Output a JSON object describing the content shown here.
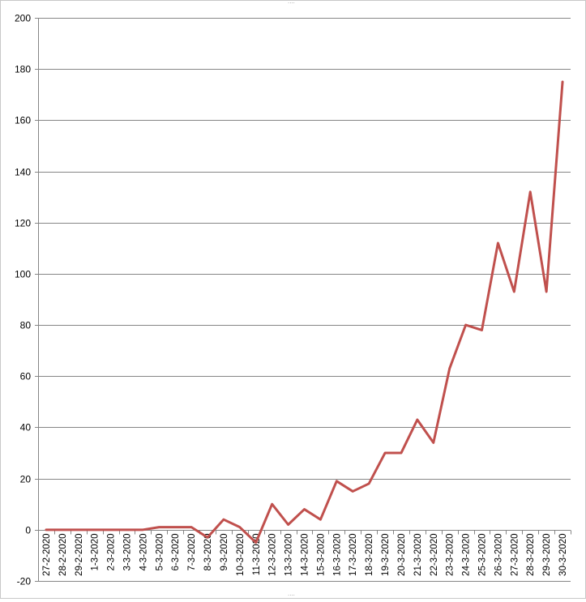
{
  "chart_data": {
    "type": "line",
    "title": "",
    "xlabel": "",
    "ylabel": "",
    "ylim": [
      -20,
      200
    ],
    "yticks": [
      -20,
      0,
      20,
      40,
      60,
      80,
      100,
      120,
      140,
      160,
      180,
      200
    ],
    "grid": true,
    "legend": "none",
    "line_color": "#c0504d",
    "categories": [
      "27-2-2020",
      "28-2-2020",
      "29-2-2020",
      "1-3-2020",
      "2-3-2020",
      "3-3-2020",
      "4-3-2020",
      "5-3-2020",
      "6-3-2020",
      "7-3-2020",
      "8-3-2020",
      "9-3-2020",
      "10-3-2020",
      "11-3-2020",
      "12-3-2020",
      "13-3-2020",
      "14-3-2020",
      "15-3-2020",
      "16-3-2020",
      "17-3-2020",
      "18-3-2020",
      "19-3-2020",
      "20-3-2020",
      "21-3-2020",
      "22-3-2020",
      "23-3-2020",
      "24-3-2020",
      "25-3-2020",
      "26-3-2020",
      "27-3-2020",
      "28-3-2020",
      "29-3-2020",
      "30-3-2020"
    ],
    "series": [
      {
        "values": [
          0,
          0,
          0,
          0,
          0,
          0,
          0,
          1,
          1,
          1,
          -3,
          4,
          1,
          -5,
          10,
          2,
          8,
          4,
          19,
          15,
          18,
          30,
          30,
          43,
          34,
          63,
          80,
          78,
          112,
          93,
          132,
          93,
          175
        ]
      }
    ]
  }
}
